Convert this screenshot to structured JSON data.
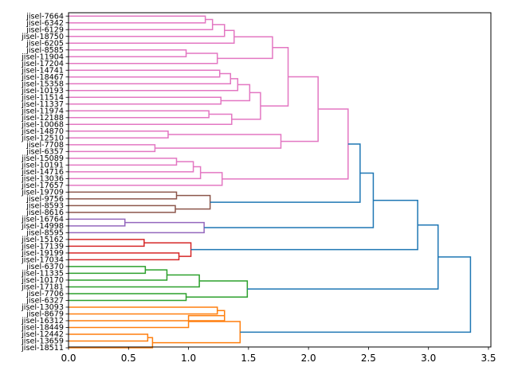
{
  "chart_data": {
    "type": "dendrogram",
    "orientation": "horizontal",
    "title": "",
    "xlabel": "",
    "ylabel": "",
    "xlim": [
      0,
      3.52
    ],
    "xticks": [
      "0.0",
      "0.5",
      "1.0",
      "1.5",
      "2.0",
      "2.5",
      "3.0",
      "3.5"
    ],
    "labels": [
      "jisel-7664",
      "jisel-6342",
      "jisel-6129",
      "jisel-18750",
      "jisel-6205",
      "jisel-8585",
      "jisel-11904",
      "jisel-17204",
      "jisel-14741",
      "jisel-18467",
      "jisel-15358",
      "jisel-10193",
      "jisel-11514",
      "jisel-11337",
      "jisel-11974",
      "jisel-12188",
      "jisel-10068",
      "jisel-14870",
      "jisel-12510",
      "jisel-7708",
      "jisel-6357",
      "jisel-15089",
      "jisel-10191",
      "jisel-14716",
      "jisel-13036",
      "jisel-17657",
      "jisel-19709",
      "jisel-9756",
      "jisel-8593",
      "jisel-8616",
      "jisel-16764",
      "jisel-14998",
      "jisel-8595",
      "jisel-15162",
      "jisel-17139",
      "jisel-19199",
      "jisel-17034",
      "jisel-6370",
      "jisel-11335",
      "jisel-10170",
      "jisel-17181",
      "jisel-7706",
      "jisel-6327",
      "jisel-13093",
      "jisel-8679",
      "jisel-16312",
      "jisel-18449",
      "jisel-12442",
      "jisel-13659",
      "jisel-18511"
    ],
    "colors": {
      "pink": "#e377c2",
      "brown": "#8c564b",
      "purple": "#9467bd",
      "red": "#d62728",
      "green": "#2ca02c",
      "orange": "#ff7f0e",
      "blue": "#1f77b4"
    },
    "merges": [
      {
        "id": "A1",
        "left": "L0",
        "right": "L1",
        "distance": 1.14,
        "color": "pink"
      },
      {
        "id": "A2",
        "left": "A1",
        "right": "L2",
        "distance": 1.2,
        "color": "pink"
      },
      {
        "id": "A3",
        "left": "A2",
        "right": "L3",
        "distance": 1.3,
        "color": "pink"
      },
      {
        "id": "A4",
        "left": "A3",
        "right": "L4",
        "distance": 1.38,
        "color": "pink"
      },
      {
        "id": "B1",
        "left": "L5",
        "right": "L6",
        "distance": 0.98,
        "color": "pink"
      },
      {
        "id": "B2",
        "left": "B1",
        "right": "L7",
        "distance": 1.24,
        "color": "pink"
      },
      {
        "id": "P1",
        "left": "A4",
        "right": "B2",
        "distance": 1.7,
        "color": "pink"
      },
      {
        "id": "C1",
        "left": "L8",
        "right": "L9",
        "distance": 1.26,
        "color": "pink"
      },
      {
        "id": "C2",
        "left": "C1",
        "right": "L10",
        "distance": 1.35,
        "color": "pink"
      },
      {
        "id": "C3",
        "left": "C2",
        "right": "L11",
        "distance": 1.41,
        "color": "pink"
      },
      {
        "id": "D1",
        "left": "L12",
        "right": "L13",
        "distance": 1.27,
        "color": "pink"
      },
      {
        "id": "D2",
        "left": "C3",
        "right": "D1",
        "distance": 1.51,
        "color": "pink"
      },
      {
        "id": "E1",
        "left": "L14",
        "right": "L15",
        "distance": 1.17,
        "color": "pink"
      },
      {
        "id": "E2",
        "left": "E1",
        "right": "L16",
        "distance": 1.36,
        "color": "pink"
      },
      {
        "id": "D3",
        "left": "D2",
        "right": "E2",
        "distance": 1.6,
        "color": "pink"
      },
      {
        "id": "P2",
        "left": "P1",
        "right": "D3",
        "distance": 1.83,
        "color": "pink"
      },
      {
        "id": "F1",
        "left": "L17",
        "right": "L18",
        "distance": 0.83,
        "color": "pink"
      },
      {
        "id": "F2",
        "left": "L19",
        "right": "L20",
        "distance": 0.72,
        "color": "pink"
      },
      {
        "id": "F3",
        "left": "F1",
        "right": "F2",
        "distance": 1.77,
        "color": "pink"
      },
      {
        "id": "P3",
        "left": "P2",
        "right": "F3",
        "distance": 2.08,
        "color": "pink"
      },
      {
        "id": "G1",
        "left": "L21",
        "right": "L22",
        "distance": 0.9,
        "color": "pink"
      },
      {
        "id": "G2",
        "left": "G1",
        "right": "L23",
        "distance": 1.04,
        "color": "pink"
      },
      {
        "id": "G3",
        "left": "G2",
        "right": "L24",
        "distance": 1.1,
        "color": "pink"
      },
      {
        "id": "G4",
        "left": "G3",
        "right": "L25",
        "distance": 1.28,
        "color": "pink"
      },
      {
        "id": "PINK",
        "left": "P3",
        "right": "G4",
        "distance": 2.33,
        "color": "pink"
      },
      {
        "id": "H1",
        "left": "L26",
        "right": "L27",
        "distance": 0.9,
        "color": "brown"
      },
      {
        "id": "H2",
        "left": "L28",
        "right": "L29",
        "distance": 0.89,
        "color": "brown"
      },
      {
        "id": "BROWN",
        "left": "H1",
        "right": "H2",
        "distance": 1.18,
        "color": "brown"
      },
      {
        "id": "I1",
        "left": "L30",
        "right": "L31",
        "distance": 0.47,
        "color": "purple"
      },
      {
        "id": "PURPLE",
        "left": "I1",
        "right": "L32",
        "distance": 1.13,
        "color": "purple"
      },
      {
        "id": "J1",
        "left": "L33",
        "right": "L34",
        "distance": 0.63,
        "color": "red"
      },
      {
        "id": "J2",
        "left": "L35",
        "right": "L36",
        "distance": 0.92,
        "color": "red"
      },
      {
        "id": "RED",
        "left": "J1",
        "right": "J2",
        "distance": 1.02,
        "color": "red"
      },
      {
        "id": "K1",
        "left": "L37",
        "right": "L38",
        "distance": 0.64,
        "color": "green"
      },
      {
        "id": "K2",
        "left": "K1",
        "right": "L39",
        "distance": 0.82,
        "color": "green"
      },
      {
        "id": "K3",
        "left": "K2",
        "right": "L40",
        "distance": 1.09,
        "color": "green"
      },
      {
        "id": "K4",
        "left": "L41",
        "right": "L42",
        "distance": 0.98,
        "color": "green"
      },
      {
        "id": "GREEN",
        "left": "K3",
        "right": "K4",
        "distance": 1.49,
        "color": "green"
      },
      {
        "id": "M1",
        "left": "L43",
        "right": "L44",
        "distance": 1.24,
        "color": "orange"
      },
      {
        "id": "M2",
        "left": "M1",
        "right": "L45",
        "distance": 1.3,
        "color": "orange"
      },
      {
        "id": "M3",
        "left": "M2",
        "right": "L46",
        "distance": 1.0,
        "color": "orange"
      },
      {
        "id": "M4",
        "left": "L47",
        "right": "L48",
        "distance": 0.66,
        "color": "orange"
      },
      {
        "id": "M5",
        "left": "M4",
        "right": "L49",
        "distance": 0.7,
        "color": "orange"
      },
      {
        "id": "ORANGE",
        "left": "M3",
        "right": "M5",
        "distance": 1.43,
        "color": "orange"
      },
      {
        "id": "N1",
        "left": "PINK",
        "right": "BROWN",
        "distance": 2.43,
        "color": "blue"
      },
      {
        "id": "N2",
        "left": "N1",
        "right": "PURPLE",
        "distance": 2.54,
        "color": "blue"
      },
      {
        "id": "N3",
        "left": "N2",
        "right": "RED",
        "distance": 2.91,
        "color": "blue"
      },
      {
        "id": "N4",
        "left": "N3",
        "right": "GREEN",
        "distance": 3.08,
        "color": "blue"
      },
      {
        "id": "ROOT",
        "left": "N4",
        "right": "ORANGE",
        "distance": 3.35,
        "color": "blue"
      }
    ]
  }
}
